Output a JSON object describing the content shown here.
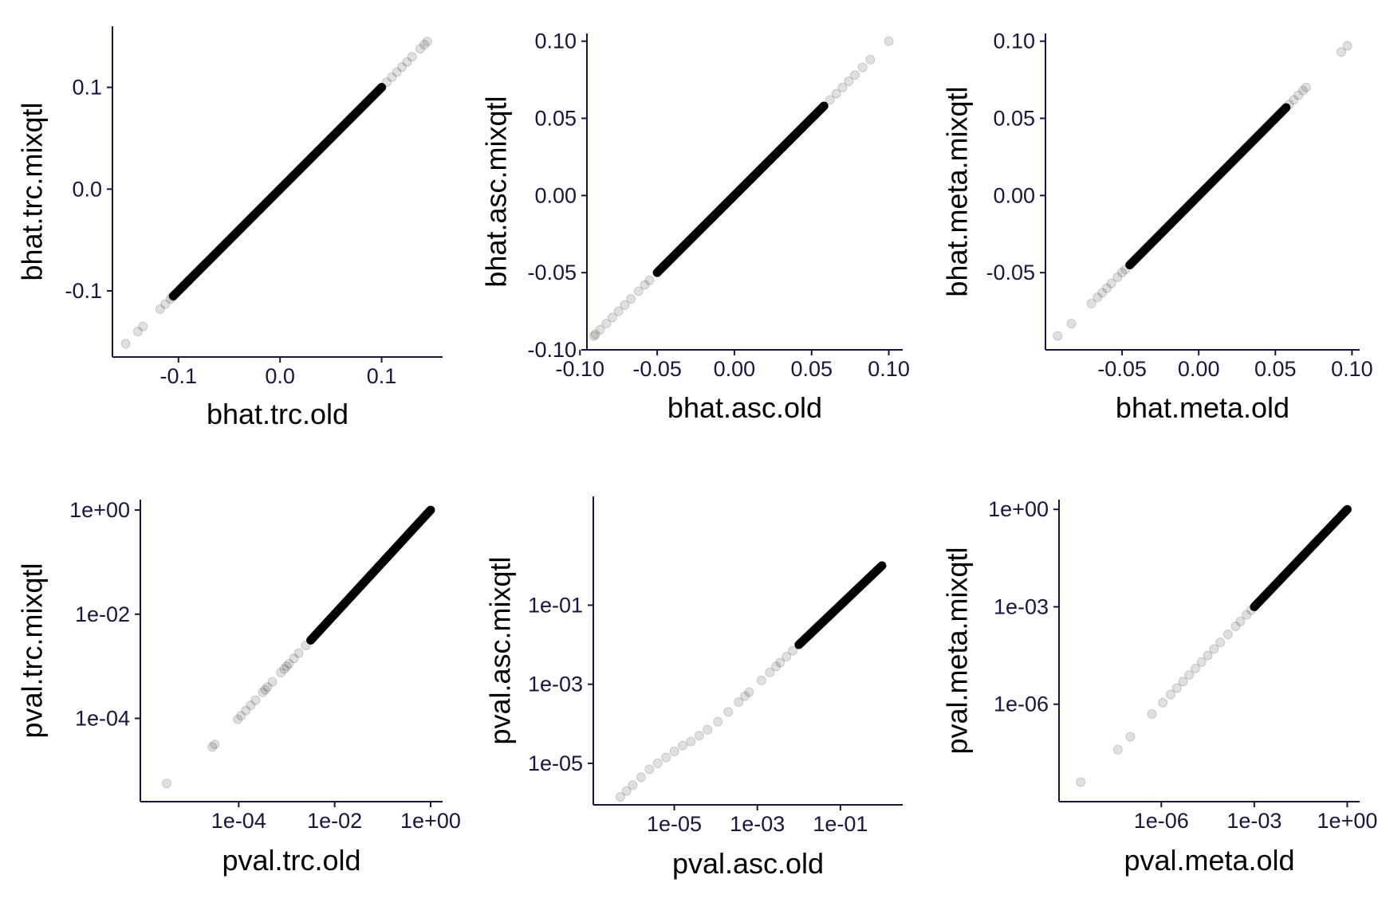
{
  "colors": {
    "axis": "#1a1540",
    "title": "#000000",
    "point": "#000000",
    "background": "#ffffff"
  },
  "chart_data": [
    {
      "type": "scatter",
      "scale": "linear",
      "xlabel": "bhat.trc.old",
      "ylabel": "bhat.trc.mixqtl",
      "xlim": [
        -0.165,
        0.16
      ],
      "ylim": [
        -0.165,
        0.16
      ],
      "xticks": [
        -0.1,
        0.0,
        0.1
      ],
      "xtick_labels": [
        "-0.1",
        "0.0",
        "0.1"
      ],
      "yticks": [
        -0.1,
        0.0,
        0.1
      ],
      "ytick_labels": [
        "-0.1",
        "0.0",
        "0.1"
      ],
      "dense_range": [
        -0.105,
        0.1
      ],
      "points": [
        [
          -0.152,
          -0.152
        ],
        [
          -0.14,
          -0.14
        ],
        [
          -0.135,
          -0.135
        ],
        [
          -0.118,
          -0.118
        ],
        [
          -0.113,
          -0.113
        ],
        [
          -0.108,
          -0.108
        ],
        [
          -0.106,
          -0.106
        ],
        [
          -0.095,
          -0.095
        ],
        [
          -0.09,
          -0.09
        ],
        [
          0.1,
          0.1
        ],
        [
          0.105,
          0.105
        ],
        [
          0.11,
          0.11
        ],
        [
          0.115,
          0.115
        ],
        [
          0.12,
          0.12
        ],
        [
          0.125,
          0.125
        ],
        [
          0.13,
          0.13
        ],
        [
          0.138,
          0.138
        ],
        [
          0.142,
          0.142
        ],
        [
          0.145,
          0.145
        ]
      ]
    },
    {
      "type": "scatter",
      "scale": "linear",
      "xlabel": "bhat.asc.old",
      "ylabel": "bhat.asc.mixqtl",
      "xlim": [
        -0.0955,
        0.109
      ],
      "ylim": [
        -0.1,
        0.105
      ],
      "xticks": [
        -0.1,
        -0.05,
        0.0,
        0.05,
        0.1
      ],
      "xtick_labels": [
        "-0.10",
        "-0.05",
        "0.00",
        "0.05",
        "0.10"
      ],
      "yticks": [
        -0.1,
        -0.05,
        0.0,
        0.05,
        0.1
      ],
      "ytick_labels": [
        "-0.10",
        "-0.05",
        "0.00",
        "0.05",
        "0.10"
      ],
      "dense_range": [
        -0.05,
        0.058
      ],
      "points": [
        [
          -0.091,
          -0.091
        ],
        [
          -0.09,
          -0.09
        ],
        [
          -0.087,
          -0.087
        ],
        [
          -0.083,
          -0.083
        ],
        [
          -0.079,
          -0.079
        ],
        [
          -0.075,
          -0.075
        ],
        [
          -0.071,
          -0.071
        ],
        [
          -0.067,
          -0.067
        ],
        [
          -0.062,
          -0.062
        ],
        [
          -0.058,
          -0.058
        ],
        [
          -0.055,
          -0.055
        ],
        [
          0.062,
          0.062
        ],
        [
          0.066,
          0.066
        ],
        [
          0.07,
          0.07
        ],
        [
          0.074,
          0.074
        ],
        [
          0.078,
          0.078
        ],
        [
          0.083,
          0.083
        ],
        [
          0.088,
          0.088
        ],
        [
          0.1,
          0.1
        ]
      ]
    },
    {
      "type": "scatter",
      "scale": "linear",
      "xlabel": "bhat.meta.old",
      "ylabel": "bhat.meta.mixqtl",
      "xlim": [
        -0.1,
        0.105
      ],
      "ylim": [
        -0.1,
        0.105
      ],
      "xticks": [
        -0.05,
        0.0,
        0.05,
        0.1
      ],
      "xtick_labels": [
        "-0.05",
        "0.00",
        "0.05",
        "0.10"
      ],
      "yticks": [
        -0.05,
        0.0,
        0.05,
        0.1
      ],
      "ytick_labels": [
        "-0.05",
        "0.00",
        "0.05",
        "0.10"
      ],
      "dense_range": [
        -0.045,
        0.057
      ],
      "points": [
        [
          -0.092,
          -0.091
        ],
        [
          -0.083,
          -0.083
        ],
        [
          -0.07,
          -0.07
        ],
        [
          -0.066,
          -0.066
        ],
        [
          -0.063,
          -0.063
        ],
        [
          -0.06,
          -0.06
        ],
        [
          -0.057,
          -0.057
        ],
        [
          -0.053,
          -0.053
        ],
        [
          -0.05,
          -0.05
        ],
        [
          -0.048,
          -0.048
        ],
        [
          0.059,
          0.059
        ],
        [
          0.062,
          0.062
        ],
        [
          0.065,
          0.065
        ],
        [
          0.068,
          0.068
        ],
        [
          0.07,
          0.07
        ],
        [
          0.093,
          0.093
        ],
        [
          0.097,
          0.097
        ]
      ]
    },
    {
      "type": "scatter",
      "scale": "log10",
      "xlabel": "pval.trc.old",
      "ylabel": "pval.trc.mixqtl",
      "xlim_log10": [
        -6.05,
        0.25
      ],
      "ylim_log10": [
        -5.6,
        0.2
      ],
      "xticks_log10": [
        -4,
        -2,
        0
      ],
      "xtick_labels": [
        "1e-04",
        "1e-02",
        "1e+00"
      ],
      "yticks_log10": [
        -4,
        -2,
        0
      ],
      "ytick_labels": [
        "1e-04",
        "1e-02",
        "1e+00"
      ],
      "dense_range_log10": [
        -2.5,
        0
      ],
      "points_log10": [
        [
          -5.5,
          -5.25
        ],
        [
          -4.55,
          -4.55
        ],
        [
          -4.5,
          -4.5
        ],
        [
          -4.02,
          -4.02
        ],
        [
          -3.95,
          -3.95
        ],
        [
          -3.85,
          -3.85
        ],
        [
          -3.75,
          -3.75
        ],
        [
          -3.65,
          -3.65
        ],
        [
          -3.5,
          -3.5
        ],
        [
          -3.45,
          -3.45
        ],
        [
          -3.4,
          -3.4
        ],
        [
          -3.3,
          -3.3
        ],
        [
          -3.12,
          -3.12
        ],
        [
          -3.05,
          -3.05
        ],
        [
          -3.0,
          -3.0
        ],
        [
          -2.95,
          -2.95
        ],
        [
          -2.85,
          -2.85
        ],
        [
          -2.75,
          -2.75
        ],
        [
          -2.6,
          -2.6
        ]
      ]
    },
    {
      "type": "scatter",
      "scale": "log10",
      "xlabel": "pval.asc.old",
      "ylabel": "pval.asc.mixqtl",
      "xlim_log10": [
        -6.95,
        0.5
      ],
      "ylim_log10": [
        -6.05,
        1.75
      ],
      "xticks_log10": [
        -5,
        -3,
        -1
      ],
      "xtick_labels": [
        "1e-05",
        "1e-03",
        "1e-01"
      ],
      "yticks_log10": [
        -5,
        -3,
        -1
      ],
      "ytick_labels": [
        "1e-05",
        "1e-03",
        "1e-01"
      ],
      "dense_range_log10": [
        -2.0,
        0
      ],
      "points_log10": [
        [
          -6.3,
          -5.85
        ],
        [
          -6.15,
          -5.7
        ],
        [
          -6.0,
          -5.55
        ],
        [
          -5.8,
          -5.35
        ],
        [
          -5.6,
          -5.15
        ],
        [
          -5.4,
          -5.0
        ],
        [
          -5.2,
          -4.85
        ],
        [
          -5.0,
          -4.7
        ],
        [
          -4.8,
          -4.55
        ],
        [
          -4.6,
          -4.45
        ],
        [
          -4.4,
          -4.3
        ],
        [
          -4.2,
          -4.15
        ],
        [
          -3.95,
          -3.95
        ],
        [
          -3.7,
          -3.7
        ],
        [
          -3.45,
          -3.45
        ],
        [
          -3.3,
          -3.3
        ],
        [
          -3.2,
          -3.2
        ],
        [
          -2.9,
          -2.9
        ],
        [
          -2.7,
          -2.7
        ],
        [
          -2.55,
          -2.55
        ],
        [
          -2.45,
          -2.45
        ],
        [
          -2.3,
          -2.3
        ],
        [
          -2.15,
          -2.15
        ]
      ]
    },
    {
      "type": "scatter",
      "scale": "log10",
      "xlabel": "pval.meta.old",
      "ylabel": "pval.meta.mixqtl",
      "xlim_log10": [
        -9.3,
        0.4
      ],
      "ylim_log10": [
        -9.0,
        0.3
      ],
      "xticks_log10": [
        -6,
        -3,
        0
      ],
      "xtick_labels": [
        "1e-06",
        "1e-03",
        "1e+00"
      ],
      "yticks_log10": [
        -6,
        -3,
        0
      ],
      "ytick_labels": [
        "1e-06",
        "1e-03",
        "1e+00"
      ],
      "dense_range_log10": [
        -3.0,
        0
      ],
      "points_log10": [
        [
          -8.6,
          -8.4
        ],
        [
          -7.4,
          -7.4
        ],
        [
          -7.0,
          -7.0
        ],
        [
          -6.3,
          -6.3
        ],
        [
          -5.95,
          -5.95
        ],
        [
          -5.7,
          -5.7
        ],
        [
          -5.5,
          -5.5
        ],
        [
          -5.3,
          -5.3
        ],
        [
          -5.1,
          -5.1
        ],
        [
          -4.9,
          -4.9
        ],
        [
          -4.7,
          -4.7
        ],
        [
          -4.5,
          -4.5
        ],
        [
          -4.3,
          -4.3
        ],
        [
          -4.1,
          -4.1
        ],
        [
          -3.85,
          -3.85
        ],
        [
          -3.6,
          -3.6
        ],
        [
          -3.45,
          -3.45
        ],
        [
          -3.25,
          -3.25
        ],
        [
          -3.1,
          -3.1
        ]
      ]
    }
  ]
}
